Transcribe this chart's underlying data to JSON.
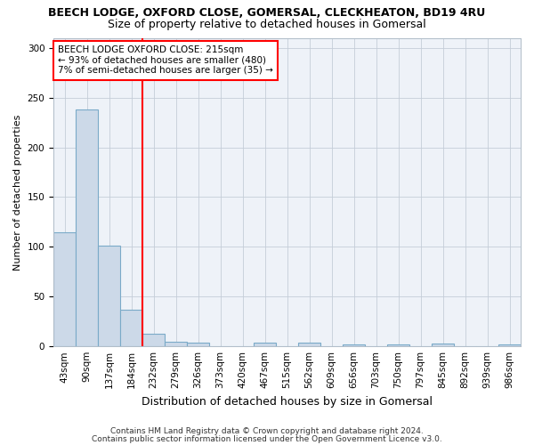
{
  "title": "BEECH LODGE, OXFORD CLOSE, GOMERSAL, CLECKHEATON, BD19 4RU",
  "subtitle": "Size of property relative to detached houses in Gomersal",
  "xlabel": "Distribution of detached houses by size in Gomersal",
  "ylabel": "Number of detached properties",
  "bar_color": "#ccd9e8",
  "bar_edge_color": "#7aaac8",
  "categories": [
    "43sqm",
    "90sqm",
    "137sqm",
    "184sqm",
    "232sqm",
    "279sqm",
    "326sqm",
    "373sqm",
    "420sqm",
    "467sqm",
    "515sqm",
    "562sqm",
    "609sqm",
    "656sqm",
    "703sqm",
    "750sqm",
    "797sqm",
    "845sqm",
    "892sqm",
    "939sqm",
    "986sqm"
  ],
  "values": [
    115,
    238,
    101,
    37,
    13,
    5,
    4,
    0,
    0,
    4,
    0,
    4,
    0,
    2,
    0,
    2,
    0,
    3,
    0,
    0,
    2
  ],
  "red_line_x": 4.0,
  "annotation_title": "BEECH LODGE OXFORD CLOSE: 215sqm",
  "annotation_line1": "← 93% of detached houses are smaller (480)",
  "annotation_line2": "7% of semi-detached houses are larger (35) →",
  "ylim": [
    0,
    310
  ],
  "yticks": [
    0,
    50,
    100,
    150,
    200,
    250,
    300
  ],
  "footer1": "Contains HM Land Registry data © Crown copyright and database right 2024.",
  "footer2": "Contains public sector information licensed under the Open Government Licence v3.0.",
  "background_color": "#eef2f8",
  "grid_color": "#c5cdd8",
  "title_fontsize": 9,
  "subtitle_fontsize": 9,
  "ylabel_fontsize": 8,
  "xlabel_fontsize": 9,
  "tick_fontsize": 7.5,
  "footer_fontsize": 6.5
}
